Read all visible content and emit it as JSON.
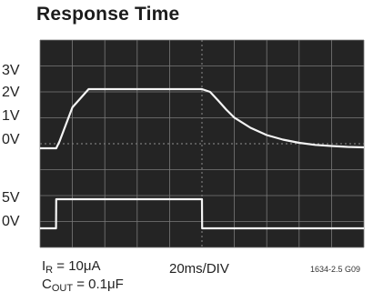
{
  "chart_data": [
    {
      "type": "line",
      "title": "Response Time",
      "xlabel": "20ms/DIV",
      "y_tick_labels": [
        "3V",
        "2V",
        "1V",
        "0V"
      ],
      "x_units": "ms",
      "y_units": "V",
      "grid": true,
      "series": [
        {
          "x": [
            0,
            10,
            12,
            20,
            30,
            40,
            50,
            60,
            70,
            80,
            90,
            100,
            105,
            110,
            115,
            120,
            130,
            140,
            150,
            160,
            170,
            180,
            190,
            200
          ],
          "values": [
            0,
            0,
            0.3,
            1.8,
            2.6,
            2.6,
            2.6,
            2.6,
            2.6,
            2.6,
            2.6,
            2.6,
            2.48,
            2.1,
            1.7,
            1.35,
            0.9,
            0.58,
            0.38,
            0.24,
            0.15,
            0.1,
            0.06,
            0.04
          ]
        }
      ]
    },
    {
      "type": "line",
      "y_tick_labels": [
        "5V",
        "0V"
      ],
      "x_units": "ms",
      "y_units": "V",
      "series": [
        {
          "x": [
            0,
            9.9,
            10,
            100,
            100.1,
            200
          ],
          "values": [
            0,
            0,
            5,
            5,
            0,
            0
          ]
        }
      ]
    }
  ],
  "annotations": {
    "ir_label": "I",
    "ir_sub": "R",
    "ir_value": " = 10μA",
    "cout_label": "C",
    "cout_sub": "OUT",
    "cout_value": " = 0.1μF",
    "part_code": "1634-2.5 G09"
  },
  "colors": {
    "screen": "#242424",
    "grid": "#7a7a7a",
    "trace": "#f4f4f4"
  }
}
